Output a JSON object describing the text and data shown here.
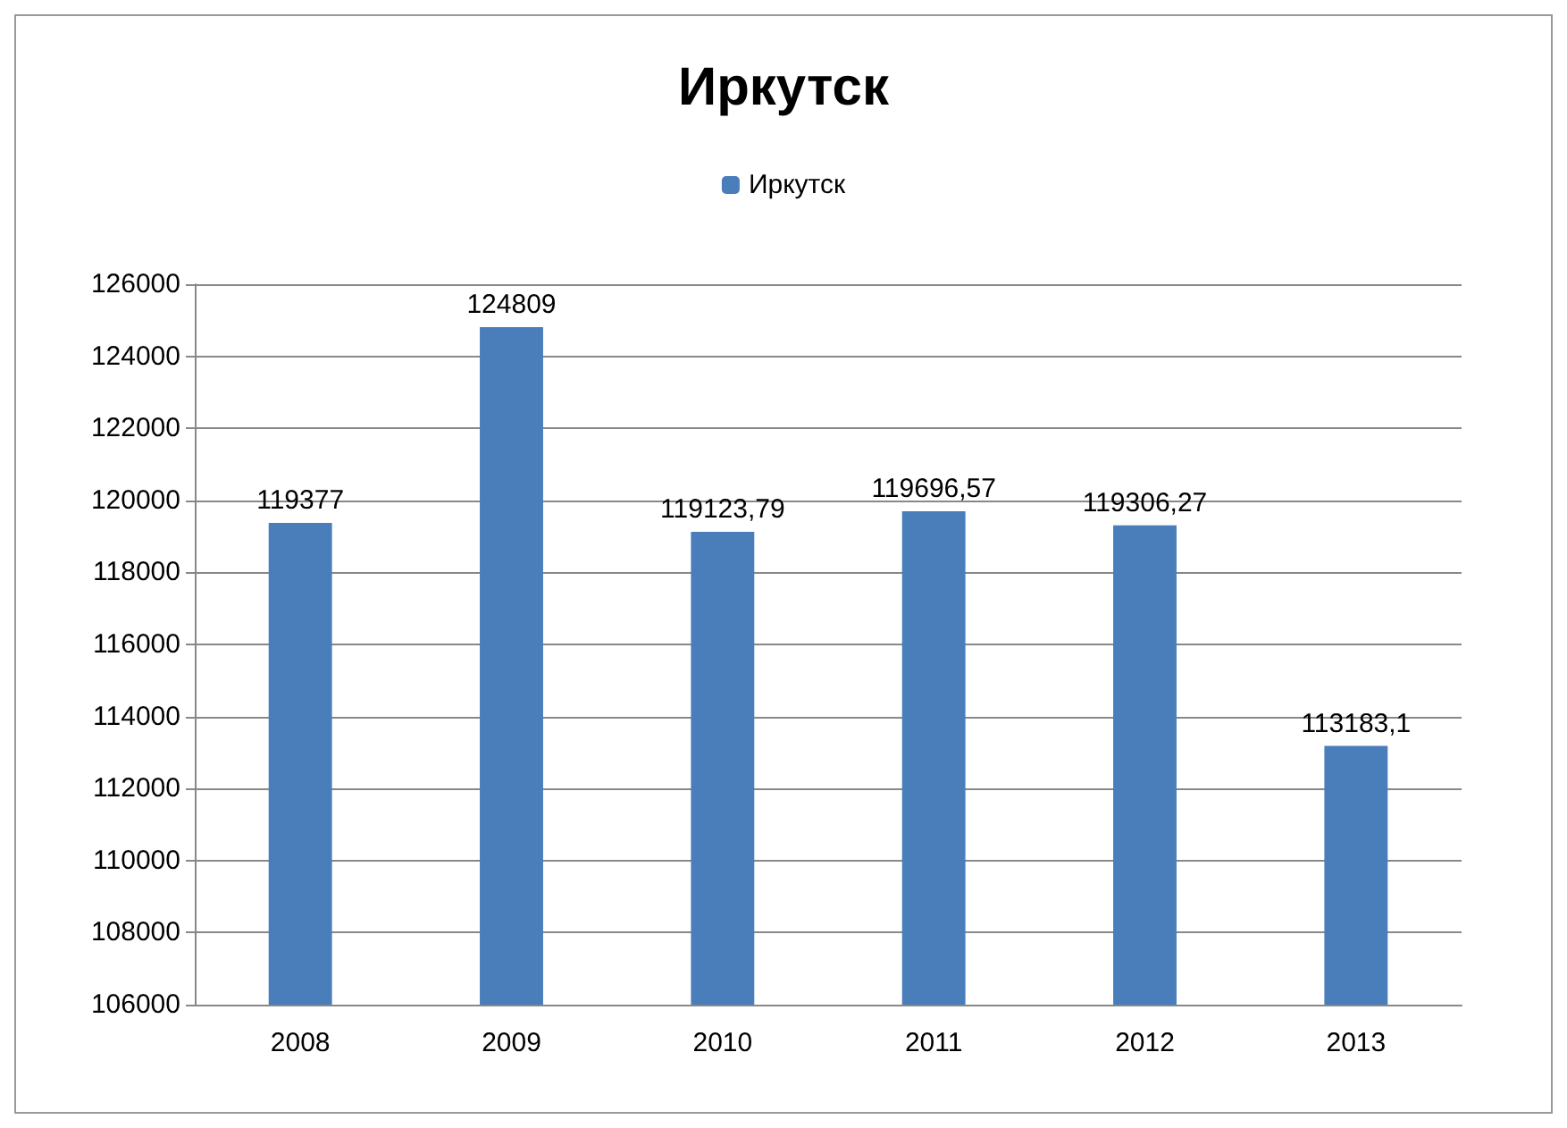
{
  "chart_data": {
    "type": "bar",
    "title": "Иркутск",
    "categories": [
      "2008",
      "2009",
      "2010",
      "2011",
      "2012",
      "2013"
    ],
    "series": [
      {
        "name": "Иркутск",
        "color": "#4a7ebb",
        "values": [
          119377,
          124809,
          119123.79,
          119696.57,
          119306.27,
          113183.1
        ],
        "value_labels": [
          "119377",
          "124809",
          "119123,79",
          "119696,57",
          "119306,27",
          "113183,1"
        ]
      }
    ],
    "ylim": [
      106000,
      126000
    ],
    "yticks": [
      106000,
      108000,
      110000,
      112000,
      114000,
      116000,
      118000,
      120000,
      122000,
      124000,
      126000
    ],
    "grid": "y",
    "legend": "top"
  }
}
